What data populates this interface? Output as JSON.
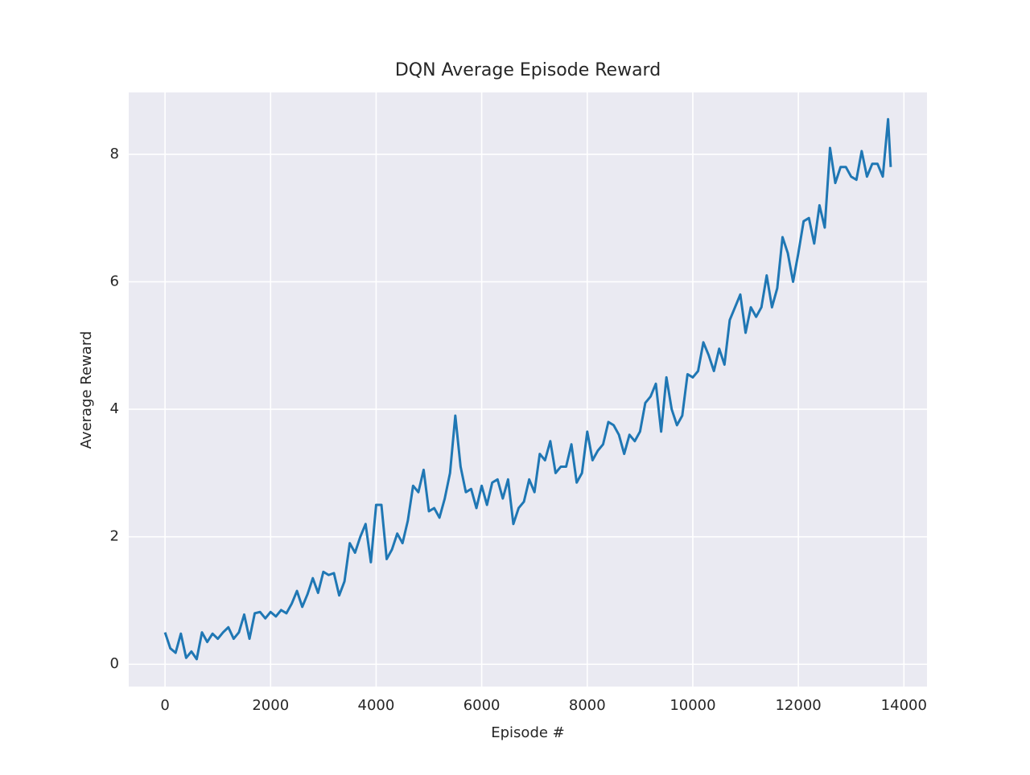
{
  "chart_data": {
    "type": "line",
    "title": "DQN Average Episode Reward",
    "xlabel": "Episode #",
    "ylabel": "Average Reward",
    "x": [
      0,
      100,
      200,
      300,
      400,
      500,
      600,
      700,
      800,
      900,
      1000,
      1100,
      1200,
      1300,
      1400,
      1500,
      1600,
      1700,
      1800,
      1900,
      2000,
      2100,
      2200,
      2300,
      2400,
      2500,
      2600,
      2700,
      2800,
      2900,
      3000,
      3100,
      3200,
      3300,
      3400,
      3500,
      3600,
      3700,
      3800,
      3900,
      4000,
      4100,
      4200,
      4300,
      4400,
      4500,
      4600,
      4700,
      4800,
      4900,
      5000,
      5100,
      5200,
      5300,
      5400,
      5500,
      5600,
      5700,
      5800,
      5900,
      6000,
      6100,
      6200,
      6300,
      6400,
      6500,
      6600,
      6700,
      6800,
      6900,
      7000,
      7100,
      7200,
      7300,
      7400,
      7500,
      7600,
      7700,
      7800,
      7900,
      8000,
      8100,
      8200,
      8300,
      8400,
      8500,
      8600,
      8700,
      8800,
      8900,
      9000,
      9100,
      9200,
      9300,
      9400,
      9500,
      9600,
      9700,
      9800,
      9900,
      10000,
      10100,
      10200,
      10300,
      10400,
      10500,
      10600,
      10700,
      10800,
      10900,
      11000,
      11100,
      11200,
      11300,
      11400,
      11500,
      11600,
      11700,
      11800,
      11900,
      12000,
      12100,
      12200,
      12300,
      12400,
      12500,
      12600,
      12700,
      12800,
      12900,
      13000,
      13100,
      13200,
      13300,
      13400,
      13500,
      13600,
      13700,
      13750
    ],
    "values": [
      0.5,
      0.25,
      0.18,
      0.48,
      0.1,
      0.2,
      0.08,
      0.5,
      0.35,
      0.48,
      0.4,
      0.5,
      0.58,
      0.4,
      0.5,
      0.78,
      0.4,
      0.8,
      0.82,
      0.72,
      0.82,
      0.75,
      0.85,
      0.8,
      0.95,
      1.15,
      0.9,
      1.1,
      1.35,
      1.12,
      1.45,
      1.4,
      1.43,
      1.08,
      1.3,
      1.9,
      1.75,
      2.0,
      2.2,
      1.6,
      2.5,
      2.5,
      1.65,
      1.8,
      2.05,
      1.9,
      2.25,
      2.8,
      2.7,
      3.05,
      2.4,
      2.45,
      2.3,
      2.6,
      3.0,
      3.9,
      3.1,
      2.7,
      2.75,
      2.45,
      2.8,
      2.5,
      2.85,
      2.9,
      2.6,
      2.9,
      2.2,
      2.45,
      2.55,
      2.9,
      2.7,
      3.3,
      3.2,
      3.5,
      3.0,
      3.1,
      3.1,
      3.45,
      2.85,
      3.0,
      3.65,
      3.2,
      3.35,
      3.45,
      3.8,
      3.75,
      3.6,
      3.3,
      3.6,
      3.5,
      3.65,
      4.1,
      4.2,
      4.4,
      3.65,
      4.5,
      4.0,
      3.75,
      3.9,
      4.55,
      4.5,
      4.6,
      5.05,
      4.85,
      4.6,
      4.95,
      4.7,
      5.4,
      5.6,
      5.8,
      5.2,
      5.6,
      5.45,
      5.6,
      6.1,
      5.6,
      5.9,
      6.7,
      6.45,
      6.0,
      6.45,
      6.95,
      7.0,
      6.6,
      7.2,
      6.85,
      8.1,
      7.55,
      7.8,
      7.8,
      7.65,
      7.6,
      8.05,
      7.65,
      7.85,
      7.85,
      7.65,
      8.55,
      7.8
    ],
    "color": "#1f77b4",
    "xlim": [
      -687.5,
      14437.5
    ],
    "ylim": [
      -0.35,
      8.97
    ],
    "xticks": [
      0,
      2000,
      4000,
      6000,
      8000,
      10000,
      12000,
      14000
    ],
    "yticks": [
      0,
      2,
      4,
      6,
      8
    ],
    "grid": true
  }
}
